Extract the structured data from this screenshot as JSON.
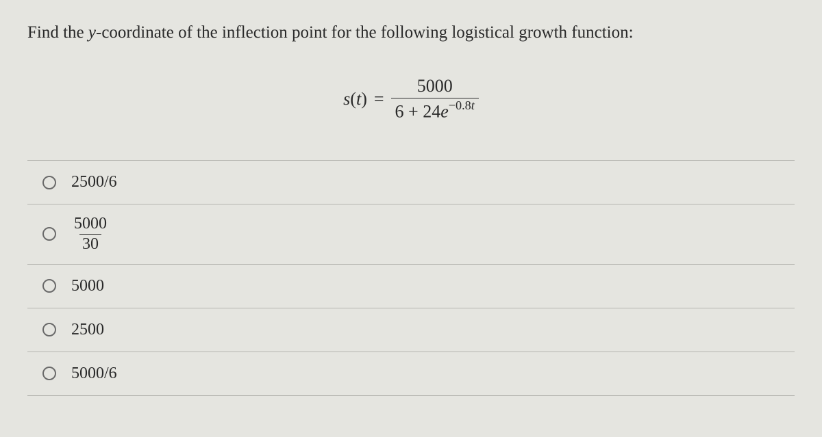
{
  "prompt": {
    "prefix": "Find the ",
    "var": "y",
    "suffix": "-coordinate of the inflection point for the following logistical growth function:"
  },
  "formula": {
    "lhs_func": "s",
    "lhs_arg": "t",
    "eq": "=",
    "numerator": "5000",
    "den_const": "6 + 24",
    "den_e": "e",
    "den_exp_prefix": "−0.8",
    "den_exp_var": "t"
  },
  "options": [
    {
      "type": "plain",
      "text": "2500/6"
    },
    {
      "type": "frac",
      "num": "5000",
      "den": "30"
    },
    {
      "type": "plain",
      "text": "5000"
    },
    {
      "type": "plain",
      "text": "2500"
    },
    {
      "type": "plain",
      "text": "5000/6"
    }
  ],
  "colors": {
    "background": "#e5e5e0",
    "text": "#2a2a2a",
    "border": "#b5b5b0",
    "radio_border": "#6a6a6a"
  }
}
